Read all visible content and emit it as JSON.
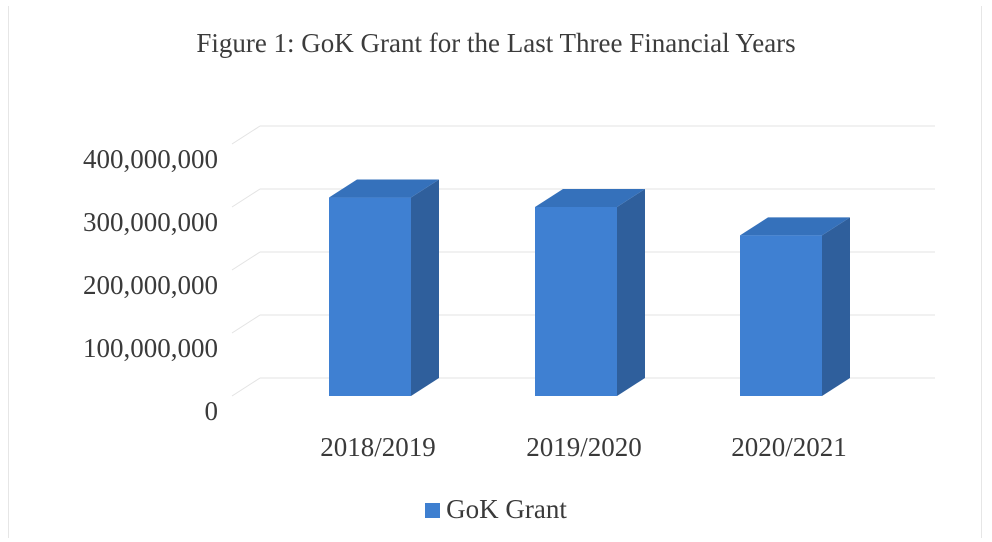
{
  "chart_data": {
    "type": "bar",
    "title": "Figure 1: GoK Grant for the Last Three Financial Years",
    "categories": [
      "2018/2019",
      "2019/2020",
      "2020/2021"
    ],
    "series": [
      {
        "name": "GoK Grant",
        "values": [
          315000000,
          300000000,
          255000000
        ]
      }
    ],
    "y_ticks": [
      "0",
      "100,000,000",
      "200,000,000",
      "300,000,000",
      "400,000,000"
    ],
    "ylim": [
      0,
      400000000
    ],
    "xlabel": "",
    "ylabel": "",
    "grid": true,
    "legend": "bottom",
    "style": "3d-column",
    "colors": {
      "front": "#3f80d2",
      "side": "#2f5f9c",
      "top": "#3571bb",
      "grid": "#e3e3e3"
    }
  }
}
